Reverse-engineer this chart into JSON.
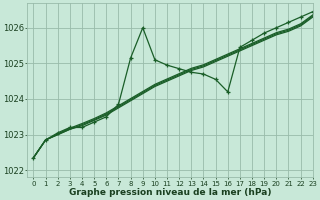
{
  "background_color": "#c8e8d8",
  "plot_bg_color": "#c8e8d8",
  "grid_color": "#99bbaa",
  "line_color": "#1a5e28",
  "marker_color": "#1a5e28",
  "xlabel": "Graphe pression niveau de la mer (hPa)",
  "xlabel_color": "#1a4020",
  "xlim": [
    -0.5,
    23
  ],
  "ylim": [
    1021.8,
    1026.7
  ],
  "yticks": [
    1022,
    1023,
    1024,
    1025,
    1026
  ],
  "xticks": [
    0,
    1,
    2,
    3,
    4,
    5,
    6,
    7,
    8,
    9,
    10,
    11,
    12,
    13,
    14,
    15,
    16,
    17,
    18,
    19,
    20,
    21,
    22,
    23
  ],
  "volatile": [
    1022.35,
    1022.85,
    1023.05,
    1023.2,
    1023.2,
    1023.35,
    1023.5,
    1023.85,
    1025.15,
    1026.0,
    1025.1,
    1024.95,
    1024.85,
    1024.75,
    1024.7,
    1024.55,
    1024.2,
    1025.45,
    1025.65,
    1025.85,
    1026.0,
    1026.15,
    1026.3,
    1026.45
  ],
  "smooth1": [
    1022.35,
    1022.85,
    1023.0,
    1023.15,
    1023.25,
    1023.4,
    1023.55,
    1023.75,
    1023.95,
    1024.15,
    1024.35,
    1024.5,
    1024.65,
    1024.8,
    1024.9,
    1025.05,
    1025.2,
    1025.35,
    1025.5,
    1025.65,
    1025.8,
    1025.9,
    1026.05,
    1026.3
  ],
  "smooth2": [
    1022.35,
    1022.85,
    1023.0,
    1023.15,
    1023.28,
    1023.42,
    1023.58,
    1023.78,
    1023.98,
    1024.18,
    1024.38,
    1024.53,
    1024.68,
    1024.83,
    1024.93,
    1025.08,
    1025.23,
    1025.38,
    1025.53,
    1025.68,
    1025.83,
    1025.93,
    1026.08,
    1026.33
  ],
  "smooth3": [
    1022.35,
    1022.85,
    1023.02,
    1023.18,
    1023.31,
    1023.45,
    1023.61,
    1023.81,
    1024.01,
    1024.21,
    1024.41,
    1024.56,
    1024.71,
    1024.86,
    1024.96,
    1025.11,
    1025.26,
    1025.41,
    1025.56,
    1025.71,
    1025.86,
    1025.96,
    1026.11,
    1026.36
  ],
  "figsize": [
    3.2,
    2.0
  ],
  "dpi": 100
}
